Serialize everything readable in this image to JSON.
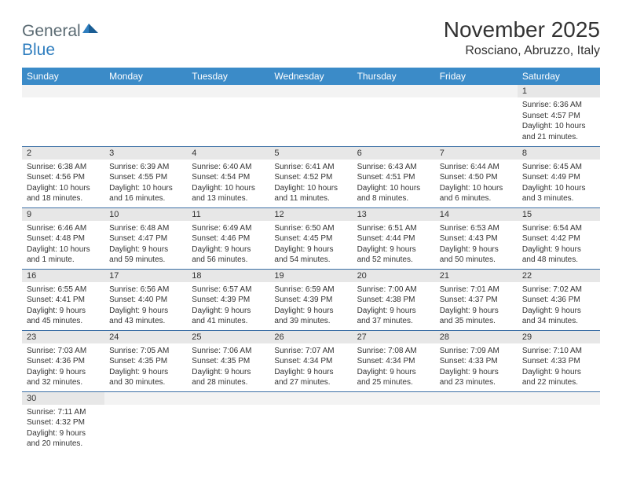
{
  "logo": {
    "general": "General",
    "blue": "Blue"
  },
  "title": "November 2025",
  "location": "Rosciano, Abruzzo, Italy",
  "colors": {
    "header_bg": "#3b8bc8",
    "header_text": "#ffffff",
    "daynum_bg": "#e7e7e7",
    "row_divider": "#3b6fa5",
    "logo_general": "#5a6a72",
    "logo_blue": "#2f7ebf"
  },
  "weekdays": [
    "Sunday",
    "Monday",
    "Tuesday",
    "Wednesday",
    "Thursday",
    "Friday",
    "Saturday"
  ],
  "weeks": [
    [
      null,
      null,
      null,
      null,
      null,
      null,
      {
        "n": "1",
        "sr": "Sunrise: 6:36 AM",
        "ss": "Sunset: 4:57 PM",
        "dl": "Daylight: 10 hours and 21 minutes."
      }
    ],
    [
      {
        "n": "2",
        "sr": "Sunrise: 6:38 AM",
        "ss": "Sunset: 4:56 PM",
        "dl": "Daylight: 10 hours and 18 minutes."
      },
      {
        "n": "3",
        "sr": "Sunrise: 6:39 AM",
        "ss": "Sunset: 4:55 PM",
        "dl": "Daylight: 10 hours and 16 minutes."
      },
      {
        "n": "4",
        "sr": "Sunrise: 6:40 AM",
        "ss": "Sunset: 4:54 PM",
        "dl": "Daylight: 10 hours and 13 minutes."
      },
      {
        "n": "5",
        "sr": "Sunrise: 6:41 AM",
        "ss": "Sunset: 4:52 PM",
        "dl": "Daylight: 10 hours and 11 minutes."
      },
      {
        "n": "6",
        "sr": "Sunrise: 6:43 AM",
        "ss": "Sunset: 4:51 PM",
        "dl": "Daylight: 10 hours and 8 minutes."
      },
      {
        "n": "7",
        "sr": "Sunrise: 6:44 AM",
        "ss": "Sunset: 4:50 PM",
        "dl": "Daylight: 10 hours and 6 minutes."
      },
      {
        "n": "8",
        "sr": "Sunrise: 6:45 AM",
        "ss": "Sunset: 4:49 PM",
        "dl": "Daylight: 10 hours and 3 minutes."
      }
    ],
    [
      {
        "n": "9",
        "sr": "Sunrise: 6:46 AM",
        "ss": "Sunset: 4:48 PM",
        "dl": "Daylight: 10 hours and 1 minute."
      },
      {
        "n": "10",
        "sr": "Sunrise: 6:48 AM",
        "ss": "Sunset: 4:47 PM",
        "dl": "Daylight: 9 hours and 59 minutes."
      },
      {
        "n": "11",
        "sr": "Sunrise: 6:49 AM",
        "ss": "Sunset: 4:46 PM",
        "dl": "Daylight: 9 hours and 56 minutes."
      },
      {
        "n": "12",
        "sr": "Sunrise: 6:50 AM",
        "ss": "Sunset: 4:45 PM",
        "dl": "Daylight: 9 hours and 54 minutes."
      },
      {
        "n": "13",
        "sr": "Sunrise: 6:51 AM",
        "ss": "Sunset: 4:44 PM",
        "dl": "Daylight: 9 hours and 52 minutes."
      },
      {
        "n": "14",
        "sr": "Sunrise: 6:53 AM",
        "ss": "Sunset: 4:43 PM",
        "dl": "Daylight: 9 hours and 50 minutes."
      },
      {
        "n": "15",
        "sr": "Sunrise: 6:54 AM",
        "ss": "Sunset: 4:42 PM",
        "dl": "Daylight: 9 hours and 48 minutes."
      }
    ],
    [
      {
        "n": "16",
        "sr": "Sunrise: 6:55 AM",
        "ss": "Sunset: 4:41 PM",
        "dl": "Daylight: 9 hours and 45 minutes."
      },
      {
        "n": "17",
        "sr": "Sunrise: 6:56 AM",
        "ss": "Sunset: 4:40 PM",
        "dl": "Daylight: 9 hours and 43 minutes."
      },
      {
        "n": "18",
        "sr": "Sunrise: 6:57 AM",
        "ss": "Sunset: 4:39 PM",
        "dl": "Daylight: 9 hours and 41 minutes."
      },
      {
        "n": "19",
        "sr": "Sunrise: 6:59 AM",
        "ss": "Sunset: 4:39 PM",
        "dl": "Daylight: 9 hours and 39 minutes."
      },
      {
        "n": "20",
        "sr": "Sunrise: 7:00 AM",
        "ss": "Sunset: 4:38 PM",
        "dl": "Daylight: 9 hours and 37 minutes."
      },
      {
        "n": "21",
        "sr": "Sunrise: 7:01 AM",
        "ss": "Sunset: 4:37 PM",
        "dl": "Daylight: 9 hours and 35 minutes."
      },
      {
        "n": "22",
        "sr": "Sunrise: 7:02 AM",
        "ss": "Sunset: 4:36 PM",
        "dl": "Daylight: 9 hours and 34 minutes."
      }
    ],
    [
      {
        "n": "23",
        "sr": "Sunrise: 7:03 AM",
        "ss": "Sunset: 4:36 PM",
        "dl": "Daylight: 9 hours and 32 minutes."
      },
      {
        "n": "24",
        "sr": "Sunrise: 7:05 AM",
        "ss": "Sunset: 4:35 PM",
        "dl": "Daylight: 9 hours and 30 minutes."
      },
      {
        "n": "25",
        "sr": "Sunrise: 7:06 AM",
        "ss": "Sunset: 4:35 PM",
        "dl": "Daylight: 9 hours and 28 minutes."
      },
      {
        "n": "26",
        "sr": "Sunrise: 7:07 AM",
        "ss": "Sunset: 4:34 PM",
        "dl": "Daylight: 9 hours and 27 minutes."
      },
      {
        "n": "27",
        "sr": "Sunrise: 7:08 AM",
        "ss": "Sunset: 4:34 PM",
        "dl": "Daylight: 9 hours and 25 minutes."
      },
      {
        "n": "28",
        "sr": "Sunrise: 7:09 AM",
        "ss": "Sunset: 4:33 PM",
        "dl": "Daylight: 9 hours and 23 minutes."
      },
      {
        "n": "29",
        "sr": "Sunrise: 7:10 AM",
        "ss": "Sunset: 4:33 PM",
        "dl": "Daylight: 9 hours and 22 minutes."
      }
    ],
    [
      {
        "n": "30",
        "sr": "Sunrise: 7:11 AM",
        "ss": "Sunset: 4:32 PM",
        "dl": "Daylight: 9 hours and 20 minutes."
      },
      null,
      null,
      null,
      null,
      null,
      null
    ]
  ]
}
